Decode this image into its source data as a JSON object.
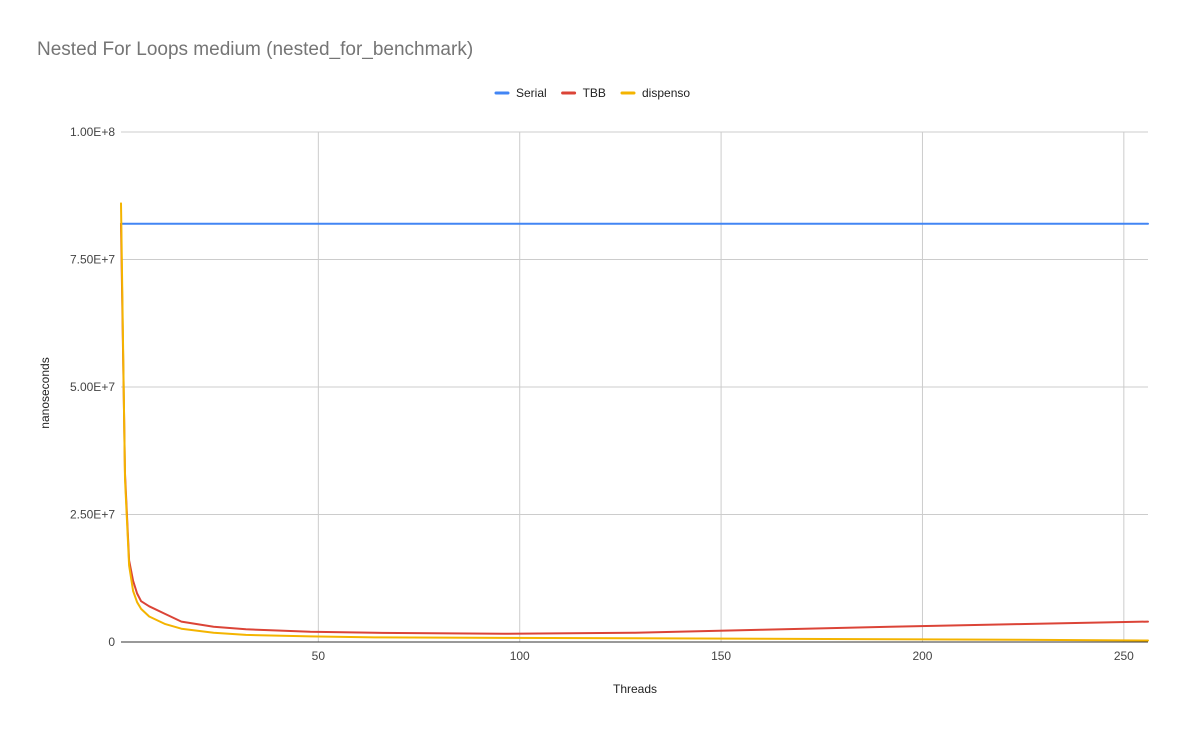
{
  "chart_data": {
    "type": "line",
    "title": "Nested For Loops medium (nested_for_benchmark)",
    "xlabel": "Threads",
    "ylabel": "nanoseconds",
    "xlim": [
      1,
      256
    ],
    "ylim": [
      0,
      100000000
    ],
    "x_ticks": [
      50,
      100,
      150,
      200,
      250
    ],
    "x_tick_labels": [
      "50",
      "100",
      "150",
      "200",
      "250"
    ],
    "y_ticks": [
      0,
      25000000,
      50000000,
      75000000,
      100000000
    ],
    "y_tick_labels": [
      "0",
      "2.50E+7",
      "5.00E+7",
      "7.50E+7",
      "1.00E+8"
    ],
    "grid": true,
    "legend_position": "top",
    "series": [
      {
        "name": "Serial",
        "color": "#4285f4",
        "points": [
          [
            1,
            82000000
          ],
          [
            256,
            82000000
          ]
        ]
      },
      {
        "name": "TBB",
        "color": "#db4437",
        "points": [
          [
            1,
            82000000
          ],
          [
            2,
            33000000
          ],
          [
            3,
            16000000
          ],
          [
            4,
            12000000
          ],
          [
            5,
            9500000
          ],
          [
            6,
            8000000
          ],
          [
            8,
            7000000
          ],
          [
            12,
            5500000
          ],
          [
            16,
            4000000
          ],
          [
            24,
            3000000
          ],
          [
            32,
            2500000
          ],
          [
            48,
            2000000
          ],
          [
            64,
            1800000
          ],
          [
            96,
            1600000
          ],
          [
            128,
            1800000
          ],
          [
            160,
            2400000
          ],
          [
            192,
            3000000
          ],
          [
            224,
            3500000
          ],
          [
            256,
            4000000
          ]
        ]
      },
      {
        "name": "dispenso",
        "color": "#f4b400",
        "points": [
          [
            1,
            86000000
          ],
          [
            2,
            32000000
          ],
          [
            3,
            15000000
          ],
          [
            4,
            10000000
          ],
          [
            5,
            7800000
          ],
          [
            6,
            6500000
          ],
          [
            8,
            5000000
          ],
          [
            12,
            3500000
          ],
          [
            16,
            2600000
          ],
          [
            24,
            1800000
          ],
          [
            32,
            1400000
          ],
          [
            48,
            1100000
          ],
          [
            64,
            900000
          ],
          [
            96,
            800000
          ],
          [
            128,
            750000
          ],
          [
            160,
            650000
          ],
          [
            192,
            550000
          ],
          [
            224,
            450000
          ],
          [
            256,
            300000
          ]
        ]
      }
    ]
  }
}
